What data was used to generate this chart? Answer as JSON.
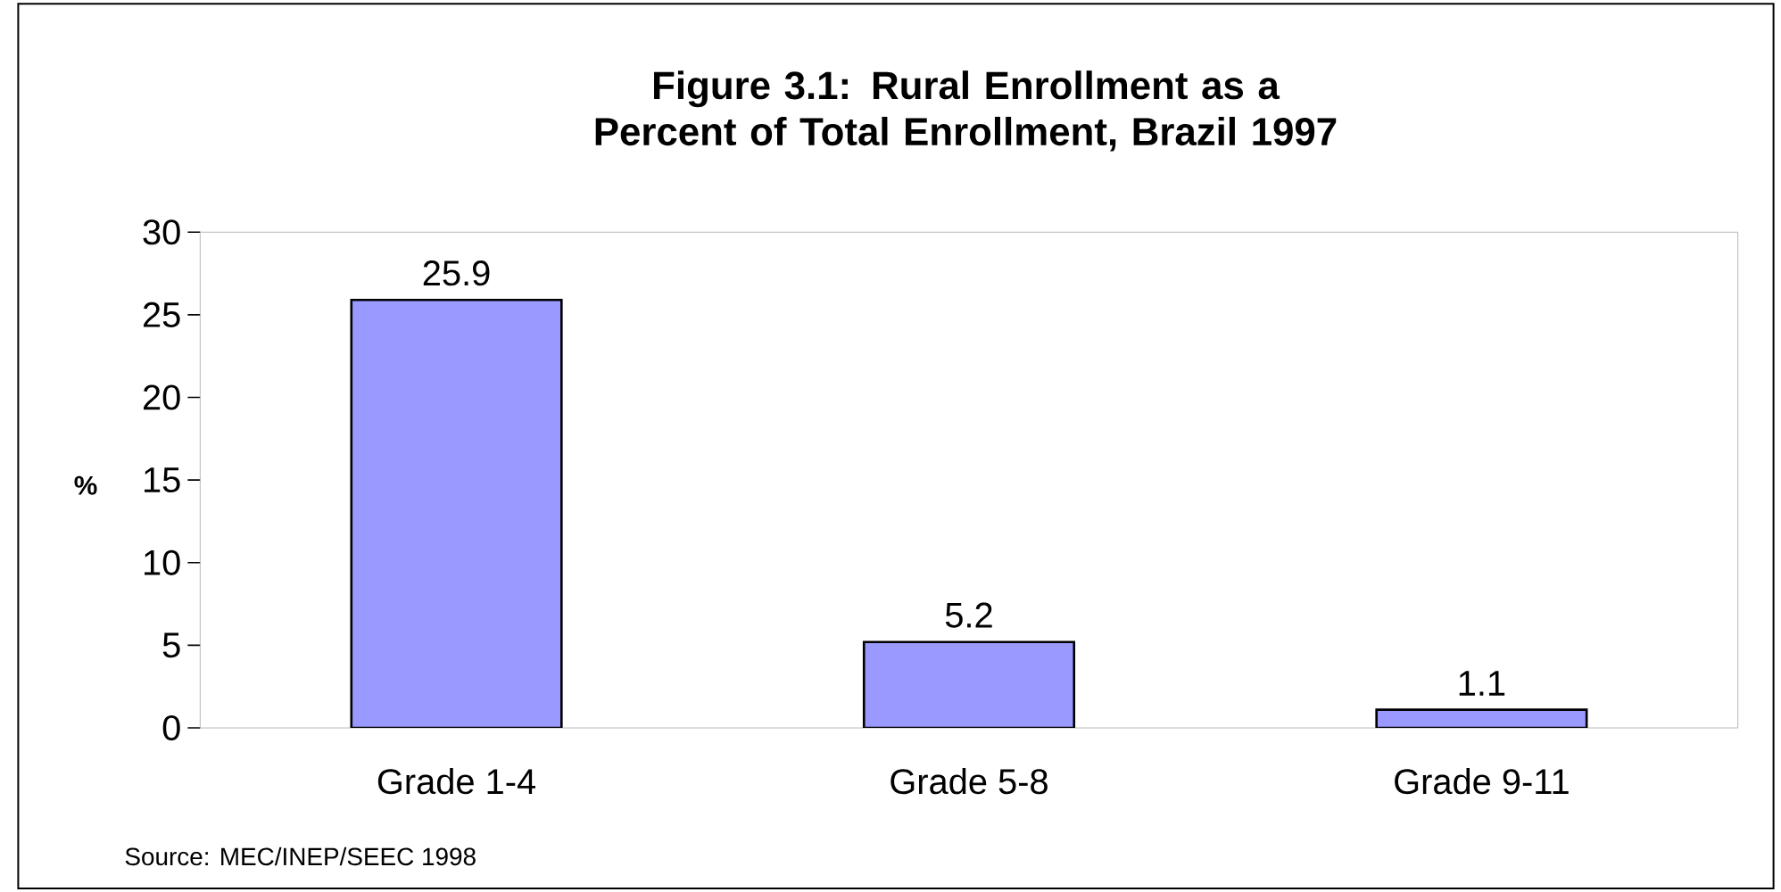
{
  "chart_data": {
    "type": "bar",
    "title": "Figure 3.1: Rural Enrollment as a Percent of Total Enrollment, Brazil 1997",
    "ylabel": "%",
    "categories": [
      "Grade 1-4",
      "Grade 5-8",
      "Grade 9-11"
    ],
    "values": [
      25.9,
      5.2,
      1.1
    ],
    "value_labels": [
      "25.9",
      "5.2",
      "1.1"
    ],
    "color": "#9999ff",
    "ylim": [
      0,
      30
    ],
    "yticks": [
      0,
      5,
      10,
      15,
      20,
      25,
      30
    ],
    "annotations": [
      "Source: MEC/INEP/SEEC 1998"
    ]
  }
}
